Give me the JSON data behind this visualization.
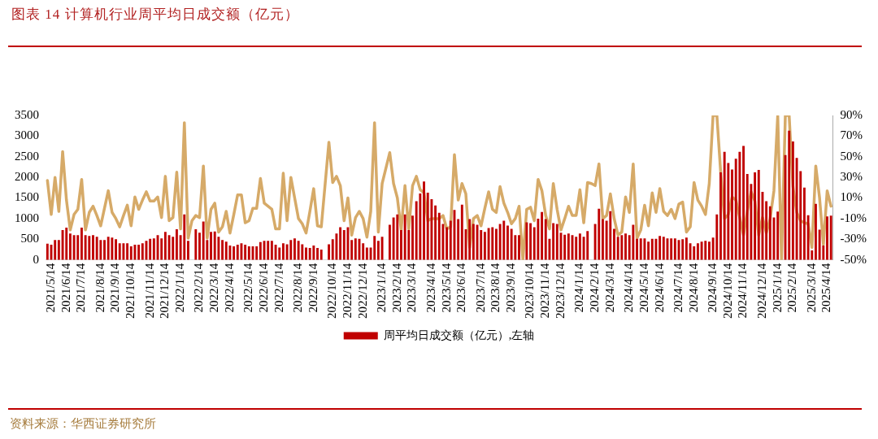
{
  "chart_data": {
    "type": "bar",
    "title": "图表 14 计算机行业周平均日成交额（亿元）",
    "categories": [
      null,
      "2021/5/14",
      null,
      null,
      null,
      "2021/6/14",
      null,
      null,
      null,
      "2021/7/14",
      null,
      null,
      null,
      null,
      "2021/8/14",
      null,
      null,
      null,
      "2021/9/14",
      null,
      null,
      null,
      "2021/10/14",
      null,
      null,
      null,
      null,
      "2021/11/14",
      null,
      null,
      null,
      "2021/12/14",
      null,
      null,
      null,
      "2022/1/14",
      null,
      null,
      null,
      null,
      "2022/2/14",
      null,
      null,
      null,
      "2022/3/14",
      null,
      null,
      null,
      "2022/4/14",
      null,
      null,
      null,
      null,
      "2022/5/14",
      null,
      null,
      null,
      "2022/6/14",
      null,
      null,
      null,
      "2022/7/14",
      null,
      null,
      null,
      null,
      "2022/8/14",
      null,
      null,
      null,
      "2022/9/14",
      null,
      null,
      null,
      null,
      "2022/10/14",
      null,
      null,
      null,
      "2022/11/14",
      null,
      null,
      null,
      "2022/12/14",
      null,
      null,
      null,
      null,
      "2023/1/14",
      null,
      null,
      null,
      "2023/2/14",
      null,
      null,
      null,
      "2023/3/14",
      null,
      null,
      null,
      null,
      "2023/4/14",
      null,
      null,
      null,
      "2023/5/14",
      null,
      null,
      null,
      "2023/6/14",
      null,
      null,
      null,
      null,
      "2023/7/14",
      null,
      null,
      null,
      "2023/8/14",
      null,
      null,
      null,
      "2023/9/14",
      null,
      null,
      null,
      null,
      "2023/10/14",
      null,
      null,
      null,
      "2023/11/14",
      null,
      null,
      null,
      "2023/12/14",
      null,
      null,
      null,
      null,
      "2024/1/14",
      null,
      null,
      null,
      "2024/2/14",
      null,
      null,
      null,
      "2024/3/14",
      null,
      null,
      null,
      null,
      "2024/4/14",
      null,
      null,
      null,
      "2024/5/14",
      null,
      null,
      null,
      "2024/6/14",
      null,
      null,
      null,
      null,
      "2024/7/14",
      null,
      null,
      null,
      "2024/8/14",
      null,
      null,
      null,
      null,
      "2024/9/14",
      null,
      null,
      null,
      "2024/10/14",
      null,
      null,
      null,
      "2024/11/14",
      null,
      null,
      null,
      null,
      "2024/12/14",
      null,
      null,
      null,
      "2025/1/14",
      null,
      null,
      null,
      "2025/2/14",
      null,
      null,
      null,
      null,
      "2025/3/14",
      null,
      null,
      null,
      "2025/4/14",
      null
    ],
    "series": [
      {
        "name": "周平均日成交额（亿元）,左轴",
        "color": "#c00000",
        "values": [
          390,
          370,
          480,
          480,
          720,
          780,
          640,
          600,
          600,
          780,
          600,
          580,
          600,
          560,
          480,
          480,
          560,
          540,
          500,
          400,
          400,
          400,
          330,
          370,
          370,
          400,
          460,
          510,
          520,
          600,
          520,
          680,
          600,
          560,
          740,
          600,
          1100,
          460,
          null,
          740,
          660,
          930,
          480,
          680,
          690,
          560,
          480,
          440,
          350,
          330,
          370,
          400,
          370,
          330,
          330,
          330,
          430,
          460,
          460,
          460,
          370,
          300,
          400,
          380,
          480,
          520,
          460,
          380,
          300,
          290,
          350,
          290,
          250,
          null,
          380,
          500,
          640,
          790,
          720,
          790,
          480,
          520,
          510,
          400,
          300,
          300,
          580,
          460,
          560,
          null,
          850,
          1030,
          1100,
          720,
          1100,
          720,
          1070,
          1420,
          1610,
          1900,
          1630,
          1470,
          1320,
          1140,
          870,
          790,
          950,
          1210,
          990,
          1340,
          740,
          990,
          870,
          850,
          720,
          680,
          770,
          790,
          750,
          870,
          950,
          830,
          750,
          600,
          600,
          null,
          910,
          890,
          790,
          1000,
          1160,
          990,
          510,
          890,
          870,
          660,
          610,
          640,
          600,
          560,
          640,
          560,
          700,
          null,
          870,
          1240,
          990,
          950,
          1180,
          750,
          560,
          600,
          640,
          600,
          850,
          510,
          520,
          520,
          440,
          510,
          510,
          580,
          560,
          520,
          520,
          520,
          480,
          500,
          540,
          400,
          330,
          400,
          440,
          460,
          440,
          540,
          1100,
          2120,
          2620,
          2350,
          2190,
          2450,
          2620,
          2760,
          2080,
          1840,
          2120,
          2180,
          1650,
          1420,
          1300,
          1030,
          1170,
          null,
          2540,
          3130,
          2870,
          2470,
          2150,
          1750,
          1080,
          230,
          1360,
          730,
          350,
          1050,
          1070
        ]
      },
      {
        "type": "line",
        "axis": "y2",
        "color": "#d6aa68",
        "values": [
          27,
          -6,
          30,
          -3,
          55,
          8,
          -21,
          -6,
          -1,
          28,
          -21,
          -4,
          2,
          -7,
          -17,
          0,
          17,
          -4,
          -10,
          -18,
          -7,
          3,
          -17,
          11,
          -1,
          8,
          16,
          7,
          7,
          11,
          -9,
          31,
          -12,
          -9,
          35,
          -20,
          83,
          -29,
          -12,
          -7,
          -9,
          41,
          -29,
          -1,
          5,
          -23,
          -18,
          -3,
          -24,
          -6,
          13,
          13,
          -14,
          -12,
          0,
          0,
          29,
          5,
          2,
          -1,
          -20,
          -20,
          34,
          -12,
          30,
          10,
          -10,
          -15,
          -24,
          -3,
          19,
          -17,
          -18,
          null,
          64,
          25,
          31,
          22,
          -12,
          10,
          -26,
          -9,
          -3,
          -10,
          -28,
          -3,
          83,
          -23,
          24,
          null,
          54,
          24,
          10,
          -21,
          22,
          -20,
          22,
          31,
          18,
          15,
          -12,
          -10,
          -10,
          -10,
          -7,
          -20,
          -18,
          52,
          8,
          24,
          14,
          -38,
          -10,
          -7,
          -17,
          0,
          16,
          -1,
          -4,
          21,
          5,
          -4,
          -15,
          -10,
          2,
          -50,
          -1,
          1,
          -12,
          28,
          17,
          -7,
          -20,
          24,
          -1,
          -21,
          -10,
          2,
          -7,
          -7,
          18,
          -14,
          25,
          24,
          22,
          43,
          -10,
          -7,
          14,
          -10,
          -26,
          -23,
          11,
          -4,
          43,
          -29,
          -21,
          3,
          -17,
          15,
          -4,
          19,
          -3,
          -7,
          -1,
          -10,
          4,
          6,
          -23,
          -18,
          25,
          8,
          2,
          -6,
          24,
          90,
          90,
          35,
          -10,
          -6,
          11,
          8,
          -9,
          -26,
          -3,
          16,
          7,
          -26,
          -9,
          -24,
          -10,
          17,
          90,
          -50,
          90,
          90,
          21,
          -4,
          -12,
          -14,
          -15,
          -38,
          41,
          10,
          -35,
          17,
          2
        ]
      }
    ],
    "ylim": [
      0,
      3500
    ],
    "yticks": [
      0,
      500,
      1000,
      1500,
      2000,
      2500,
      3000,
      3500
    ],
    "y2lim": [
      -50,
      90
    ],
    "y2ticks": [
      {
        "value": -50,
        "label": "-50%"
      },
      {
        "value": -30,
        "label": "-30%"
      },
      {
        "value": -10,
        "label": "-10%"
      },
      {
        "value": 10,
        "label": "10%"
      },
      {
        "value": 30,
        "label": "30%"
      },
      {
        "value": 50,
        "label": "50%"
      },
      {
        "value": 70,
        "label": "70%"
      },
      {
        "value": 90,
        "label": "90%"
      }
    ],
    "legend": "bottom",
    "marker": "none",
    "line_style": "solid",
    "annotations": [
      "资料来源：华西证券研究所"
    ]
  }
}
